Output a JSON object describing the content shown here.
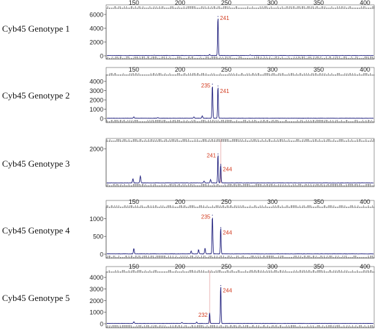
{
  "chart_data": [
    {
      "type": "line",
      "label": "Cyb45  Genotype 1",
      "x_ticks": [
        150,
        200,
        250,
        300,
        350,
        400
      ],
      "show_x_ticks": true,
      "y_ticks": [
        0,
        2000,
        4000,
        6000
      ],
      "ylim": [
        0,
        6500
      ],
      "xlim": [
        120,
        410
      ],
      "peaks": [
        {
          "x": 241,
          "height": 5700,
          "label": "241"
        }
      ],
      "minor_peaks": [
        {
          "x": 172,
          "height": 60
        },
        {
          "x": 232,
          "height": 150
        },
        {
          "x": 276,
          "height": 80
        }
      ],
      "marker_lines": []
    },
    {
      "type": "line",
      "label": "Cyb45  Genotype 2",
      "x_ticks": [
        150,
        200,
        250,
        300,
        350,
        400
      ],
      "show_x_ticks": true,
      "y_ticks": [
        0,
        1000,
        2000,
        3000,
        4000
      ],
      "ylim": [
        0,
        4600
      ],
      "xlim": [
        120,
        410
      ],
      "peaks": [
        {
          "x": 235,
          "height": 3700,
          "label": "235"
        },
        {
          "x": 241,
          "height": 3500,
          "label": "241"
        }
      ],
      "minor_peaks": [
        {
          "x": 150,
          "height": 150
        },
        {
          "x": 176,
          "height": 80
        },
        {
          "x": 215,
          "height": 150
        },
        {
          "x": 224,
          "height": 250
        }
      ],
      "marker_lines": []
    },
    {
      "type": "line",
      "label": "Cyb45  Genotype 3",
      "x_ticks": [],
      "show_x_ticks": false,
      "y_ticks": [
        2000
      ],
      "ylim": [
        0,
        2400
      ],
      "xlim": [
        120,
        410
      ],
      "peaks": [
        {
          "x": 241,
          "height": 1700,
          "label": "241"
        },
        {
          "x": 244,
          "height": 1100,
          "label": "244"
        }
      ],
      "minor_peaks": [
        {
          "x": 149,
          "height": 250
        },
        {
          "x": 157,
          "height": 400
        },
        {
          "x": 226,
          "height": 120
        },
        {
          "x": 233,
          "height": 200
        }
      ],
      "marker_lines": [
        244
      ]
    },
    {
      "type": "line",
      "label": "Cyb45  Genotype 4",
      "x_ticks": [
        150,
        200,
        250,
        300,
        350,
        400
      ],
      "show_x_ticks": true,
      "y_ticks": [
        0,
        500,
        1000
      ],
      "ylim": [
        0,
        1300
      ],
      "xlim": [
        120,
        410
      ],
      "peaks": [
        {
          "x": 235,
          "height": 1100,
          "label": "235"
        },
        {
          "x": 244,
          "height": 750,
          "label": "244"
        }
      ],
      "minor_peaks": [
        {
          "x": 150,
          "height": 150
        },
        {
          "x": 212,
          "height": 80
        },
        {
          "x": 220,
          "height": 120
        },
        {
          "x": 227,
          "height": 160
        }
      ],
      "marker_lines": []
    },
    {
      "type": "line",
      "label": "Cyb45  Genotype 5",
      "x_ticks": [
        150,
        200,
        250,
        300,
        350,
        400
      ],
      "show_x_ticks": true,
      "y_ticks": [
        0,
        1000,
        2000,
        3000,
        4000
      ],
      "ylim": [
        0,
        4400
      ],
      "xlim": [
        120,
        410
      ],
      "peaks": [
        {
          "x": 232,
          "height": 900,
          "label": "232"
        },
        {
          "x": 244,
          "height": 3300,
          "label": "244"
        }
      ],
      "minor_peaks": [
        {
          "x": 150,
          "height": 150
        },
        {
          "x": 202,
          "height": 80
        },
        {
          "x": 218,
          "height": 120
        }
      ],
      "marker_lines": [
        232
      ]
    }
  ],
  "colors": {
    "trace": "#1a1a7a",
    "peak_label": "#d23a1e",
    "marker_line": "#e6a7a7",
    "frame": "#555555",
    "ruler": "#2a2a2a"
  }
}
